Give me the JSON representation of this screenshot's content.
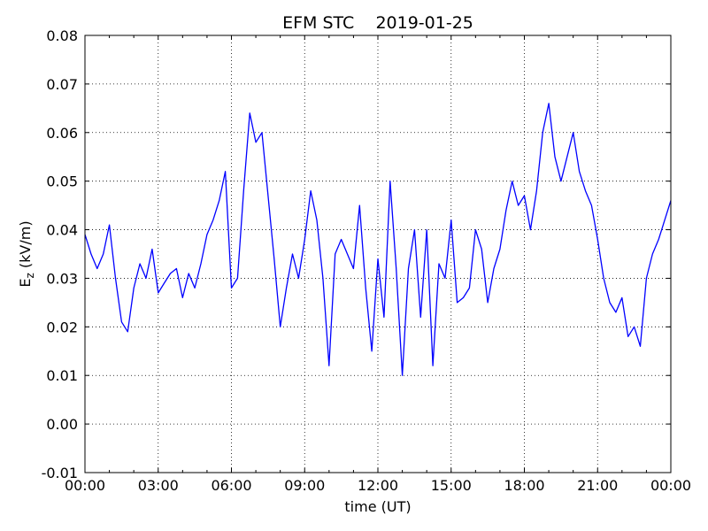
{
  "chart_data": {
    "type": "line",
    "title": "EFM STC    2019-01-25",
    "xlabel": "time (UT)",
    "ylabel": {
      "main": "E",
      "sub": "z",
      "unit": " (kV/m)"
    },
    "xlim": [
      0,
      24
    ],
    "ylim": [
      -0.01,
      0.08
    ],
    "grid": true,
    "x_ticks": [
      "00:00",
      "03:00",
      "06:00",
      "09:00",
      "12:00",
      "15:00",
      "18:00",
      "21:00",
      "00:00"
    ],
    "y_ticks": [
      "-0.01",
      "0.00",
      "0.01",
      "0.02",
      "0.03",
      "0.04",
      "0.05",
      "0.06",
      "0.07",
      "0.08"
    ],
    "series": [
      {
        "color": "#0000ff",
        "x": [
          0,
          0.25,
          0.5,
          0.75,
          1.0,
          1.25,
          1.5,
          1.75,
          2.0,
          2.25,
          2.5,
          2.75,
          3.0,
          3.25,
          3.5,
          3.75,
          4.0,
          4.25,
          4.5,
          4.75,
          5.0,
          5.25,
          5.5,
          5.75,
          6.0,
          6.25,
          6.5,
          6.75,
          7.0,
          7.25,
          7.5,
          7.75,
          8.0,
          8.25,
          8.5,
          8.75,
          9.0,
          9.25,
          9.5,
          9.75,
          10.0,
          10.25,
          10.5,
          10.75,
          11.0,
          11.25,
          11.5,
          11.75,
          12.0,
          12.25,
          12.5,
          12.75,
          13.0,
          13.25,
          13.5,
          13.75,
          14.0,
          14.25,
          14.5,
          14.75,
          15.0,
          15.25,
          15.5,
          15.75,
          16.0,
          16.25,
          16.5,
          16.75,
          17.0,
          17.25,
          17.5,
          17.75,
          18.0,
          18.25,
          18.5,
          18.75,
          19.0,
          19.25,
          19.5,
          19.75,
          20.0,
          20.25,
          20.5,
          20.75,
          21.0,
          21.25,
          21.5,
          21.75,
          22.0,
          22.25,
          22.5,
          22.75,
          23.0,
          23.25,
          23.5,
          23.75,
          24.0
        ],
        "values": [
          0.039,
          0.035,
          0.032,
          0.035,
          0.041,
          0.03,
          0.021,
          0.019,
          0.028,
          0.033,
          0.03,
          0.036,
          0.027,
          0.029,
          0.031,
          0.032,
          0.026,
          0.031,
          0.028,
          0.033,
          0.039,
          0.042,
          0.046,
          0.052,
          0.028,
          0.03,
          0.048,
          0.064,
          0.058,
          0.06,
          0.047,
          0.034,
          0.02,
          0.028,
          0.035,
          0.03,
          0.038,
          0.048,
          0.042,
          0.03,
          0.012,
          0.035,
          0.038,
          0.035,
          0.032,
          0.045,
          0.028,
          0.015,
          0.034,
          0.022,
          0.05,
          0.032,
          0.01,
          0.032,
          0.04,
          0.022,
          0.04,
          0.012,
          0.033,
          0.03,
          0.042,
          0.025,
          0.026,
          0.028,
          0.04,
          0.036,
          0.025,
          0.032,
          0.036,
          0.044,
          0.05,
          0.045,
          0.047,
          0.04,
          0.048,
          0.06,
          0.066,
          0.055,
          0.05,
          0.055,
          0.06,
          0.052,
          0.048,
          0.045,
          0.038,
          0.03,
          0.025,
          0.023,
          0.026,
          0.018,
          0.02,
          0.016,
          0.03,
          0.035,
          0.038,
          0.042,
          0.046
        ]
      }
    ]
  }
}
